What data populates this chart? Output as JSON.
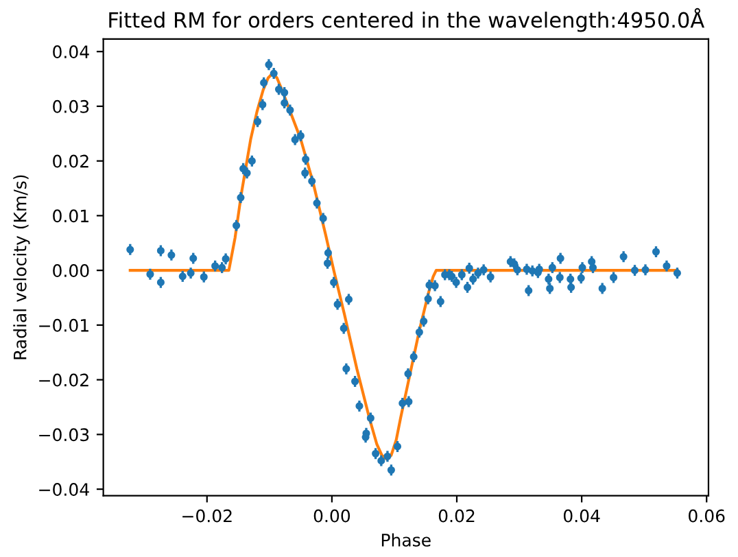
{
  "chart_data": {
    "type": "scatter",
    "title": "Fitted RM for orders centered in the wavelength:4950.0Å",
    "xlabel": "Phase",
    "ylabel": "Radial velocity (Km/s)",
    "xlim": [
      -0.0366,
      0.0603
    ],
    "ylim": [
      -0.0412,
      0.0423
    ],
    "xticks": [
      {
        "value": -0.02,
        "label": "−0.02"
      },
      {
        "value": 0.0,
        "label": "0.00"
      },
      {
        "value": 0.02,
        "label": "0.02"
      },
      {
        "value": 0.04,
        "label": "0.04"
      },
      {
        "value": 0.06,
        "label": "0.06"
      }
    ],
    "yticks": [
      {
        "value": -0.04,
        "label": "−0.04"
      },
      {
        "value": -0.03,
        "label": "−0.03"
      },
      {
        "value": -0.02,
        "label": "−0.02"
      },
      {
        "value": -0.01,
        "label": "−0.01"
      },
      {
        "value": 0.0,
        "label": "0.00"
      },
      {
        "value": 0.01,
        "label": "0.01"
      },
      {
        "value": 0.02,
        "label": "0.02"
      },
      {
        "value": 0.03,
        "label": "0.03"
      },
      {
        "value": 0.04,
        "label": "0.04"
      }
    ],
    "marker": "circle",
    "grid": false,
    "series": [
      {
        "color": "#1f77b4",
        "x": [
          -0.0323,
          -0.0291,
          -0.0274,
          -0.0274,
          -0.0257,
          -0.0239,
          -0.0226,
          -0.0222,
          -0.0205,
          -0.0187,
          -0.0176,
          -0.017,
          -0.0153,
          -0.0146,
          -0.0142,
          -0.0136,
          -0.0128,
          -0.0119,
          -0.0111,
          -0.0109,
          -0.0101,
          -0.0093,
          -0.0085,
          -0.0076,
          -0.0076,
          -0.0067,
          -0.0059,
          -0.005,
          -0.0042,
          -0.0043,
          -0.0032,
          -0.0024,
          -0.0014,
          -0.0006,
          -0.0007,
          0.0003,
          0.0009,
          0.0027,
          0.0019,
          0.0023,
          0.0037,
          0.0044,
          0.0062,
          0.0055,
          0.0054,
          0.007,
          0.0079,
          0.0089,
          0.0095,
          0.0105,
          0.0113,
          0.0123,
          0.0122,
          0.0131,
          0.014,
          0.0147,
          0.0154,
          0.0156,
          0.0165,
          0.0174,
          0.0181,
          0.0188,
          0.0192,
          0.0199,
          0.0208,
          0.0217,
          0.022,
          0.0226,
          0.0234,
          0.0243,
          0.0254,
          0.0286,
          0.0292,
          0.0297,
          0.0315,
          0.0312,
          0.0321,
          0.033,
          0.0332,
          0.0347,
          0.0349,
          0.0353,
          0.0365,
          0.0366,
          0.0382,
          0.0383,
          0.0399,
          0.0401,
          0.0416,
          0.0418,
          0.0433,
          0.0451,
          0.0467,
          0.0485,
          0.0502,
          0.0519,
          0.0536,
          0.0553
        ],
        "values": [
          0.0038,
          -0.0007,
          0.0036,
          -0.0022,
          0.0028,
          -0.0011,
          -0.0005,
          0.0022,
          -0.0012,
          0.0008,
          0.0005,
          0.0021,
          0.0082,
          0.0133,
          0.0186,
          0.0178,
          0.02,
          0.0272,
          0.0303,
          0.0343,
          0.0376,
          0.036,
          0.0331,
          0.0325,
          0.0306,
          0.0293,
          0.0239,
          0.0246,
          0.0203,
          0.0178,
          0.0163,
          0.0123,
          0.0095,
          0.0032,
          0.0013,
          -0.0022,
          -0.0062,
          -0.0053,
          -0.0106,
          -0.018,
          -0.0203,
          -0.0248,
          -0.027,
          -0.0298,
          -0.0305,
          -0.0335,
          -0.0348,
          -0.034,
          -0.0365,
          -0.0322,
          -0.0243,
          -0.024,
          -0.0189,
          -0.0158,
          -0.0113,
          -0.0093,
          -0.0052,
          -0.0027,
          -0.0028,
          -0.0057,
          -0.0008,
          -0.0008,
          -0.0011,
          -0.0022,
          -0.0008,
          -0.0031,
          0.0004,
          -0.0016,
          -0.0005,
          0.0001,
          -0.0012,
          0.0016,
          0.0012,
          0.0001,
          -0.0037,
          0.0002,
          -0.0001,
          -0.0004,
          0.0002,
          -0.0016,
          -0.0033,
          0.0005,
          -0.0013,
          0.0022,
          -0.0016,
          -0.0031,
          -0.0014,
          0.0005,
          0.0016,
          0.0005,
          -0.0033,
          -0.0013,
          0.0025,
          0.0,
          0.0001,
          0.0034,
          0.0008,
          -0.0005
        ],
        "errors": [
          0.001,
          0.001,
          0.001,
          0.001,
          0.001,
          0.001,
          0.001,
          0.001,
          0.001,
          0.001,
          0.001,
          0.001,
          0.001,
          0.001,
          0.001,
          0.001,
          0.001,
          0.001,
          0.001,
          0.001,
          0.001,
          0.001,
          0.001,
          0.001,
          0.001,
          0.001,
          0.001,
          0.001,
          0.001,
          0.001,
          0.001,
          0.001,
          0.001,
          0.001,
          0.001,
          0.001,
          0.001,
          0.001,
          0.001,
          0.001,
          0.001,
          0.001,
          0.001,
          0.001,
          0.001,
          0.001,
          0.001,
          0.001,
          0.001,
          0.001,
          0.001,
          0.001,
          0.001,
          0.001,
          0.001,
          0.001,
          0.001,
          0.001,
          0.001,
          0.001,
          0.001,
          0.001,
          0.001,
          0.001,
          0.001,
          0.001,
          0.001,
          0.001,
          0.001,
          0.001,
          0.001,
          0.001,
          0.001,
          0.001,
          0.001,
          0.001,
          0.001,
          0.001,
          0.001,
          0.001,
          0.001,
          0.001,
          0.001,
          0.001,
          0.001,
          0.001,
          0.001,
          0.001,
          0.001,
          0.001,
          0.001,
          0.001,
          0.001,
          0.001,
          0.001,
          0.001,
          0.001,
          0.001
        ]
      },
      {
        "type": "line",
        "color": "#ff7f0e",
        "marker": "none",
        "x": [
          -0.0323,
          -0.0165,
          -0.0155,
          -0.0145,
          -0.013,
          -0.012,
          -0.011,
          -0.0102,
          -0.0095,
          -0.0088,
          -0.008,
          -0.007,
          -0.005,
          -0.003,
          -0.001,
          0.0003,
          0.002,
          0.004,
          0.006,
          0.0072,
          0.008,
          0.0088,
          0.0095,
          0.0103,
          0.011,
          0.0125,
          0.014,
          0.0155,
          0.0162,
          0.0167,
          0.0553
        ],
        "values": [
          0.0,
          0.0,
          0.006,
          0.014,
          0.024,
          0.029,
          0.033,
          0.0352,
          0.036,
          0.0352,
          0.033,
          0.03,
          0.024,
          0.016,
          0.0065,
          0.0,
          -0.008,
          -0.018,
          -0.027,
          -0.0318,
          -0.0338,
          -0.0345,
          -0.0338,
          -0.031,
          -0.027,
          -0.019,
          -0.011,
          -0.004,
          -0.0012,
          0.0,
          0.0
        ]
      }
    ]
  }
}
